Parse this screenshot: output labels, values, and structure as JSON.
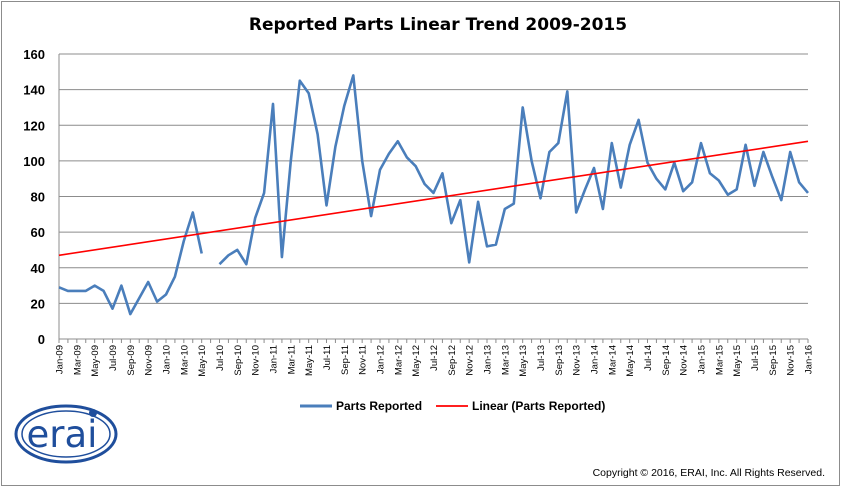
{
  "chart_data": {
    "type": "line",
    "title": "Reported Parts Linear Trend 2009-2015",
    "xlabel": "",
    "ylabel": "",
    "ylim": [
      0,
      160
    ],
    "yticks": [
      0,
      20,
      40,
      60,
      80,
      100,
      120,
      140,
      160
    ],
    "grid": "horizontal",
    "legend_position": "bottom",
    "xtick_labels": [
      "Jan-09",
      "Mar-09",
      "May-09",
      "Jul-09",
      "Sep-09",
      "Nov-09",
      "Jan-10",
      "Mar-10",
      "May-10",
      "Jul-10",
      "Sep-10",
      "Nov-10",
      "Jan-11",
      "Mar-11",
      "May-11",
      "Jul-11",
      "Sep-11",
      "Nov-11",
      "Jan-12",
      "Mar-12",
      "May-12",
      "Jul-12",
      "Sep-12",
      "Nov-12",
      "Jan-13",
      "Mar-13",
      "May-13",
      "Jul-13",
      "Sep-13",
      "Nov-13",
      "Jan-14",
      "Mar-14",
      "May-14",
      "Jul-14",
      "Sep-14",
      "Nov-14",
      "Jan-15",
      "Mar-15",
      "May-15",
      "Jul-15",
      "Sep-15",
      "Nov-15",
      "Jan-16"
    ],
    "series": [
      {
        "name": "Parts Reported",
        "color": "#4a7ebb",
        "values": [
          29,
          27,
          27,
          27,
          30,
          27,
          17,
          30,
          14,
          23,
          32,
          21,
          25,
          35,
          55,
          71,
          48,
          null,
          42,
          47,
          50,
          42,
          68,
          82,
          132,
          46,
          100,
          145,
          138,
          115,
          75,
          108,
          131,
          148,
          100,
          69,
          95,
          104,
          111,
          102,
          97,
          87,
          82,
          93,
          65,
          78,
          43,
          77,
          52,
          53,
          73,
          76,
          130,
          100,
          79,
          105,
          110,
          139,
          71,
          84,
          96,
          73,
          110,
          85,
          109,
          123,
          99,
          90,
          84,
          99,
          83,
          88,
          110,
          93,
          89,
          81,
          84,
          109,
          86,
          105,
          91,
          78,
          105,
          88,
          82
        ]
      },
      {
        "name": "Linear (Parts Reported)",
        "color": "#ff0000",
        "start": 47,
        "end": 111
      }
    ]
  },
  "logo": {
    "text": "erai",
    "color": "#1f4e9c"
  },
  "copyright": "Copyright © 2016, ERAI, Inc.  All Rights Reserved."
}
